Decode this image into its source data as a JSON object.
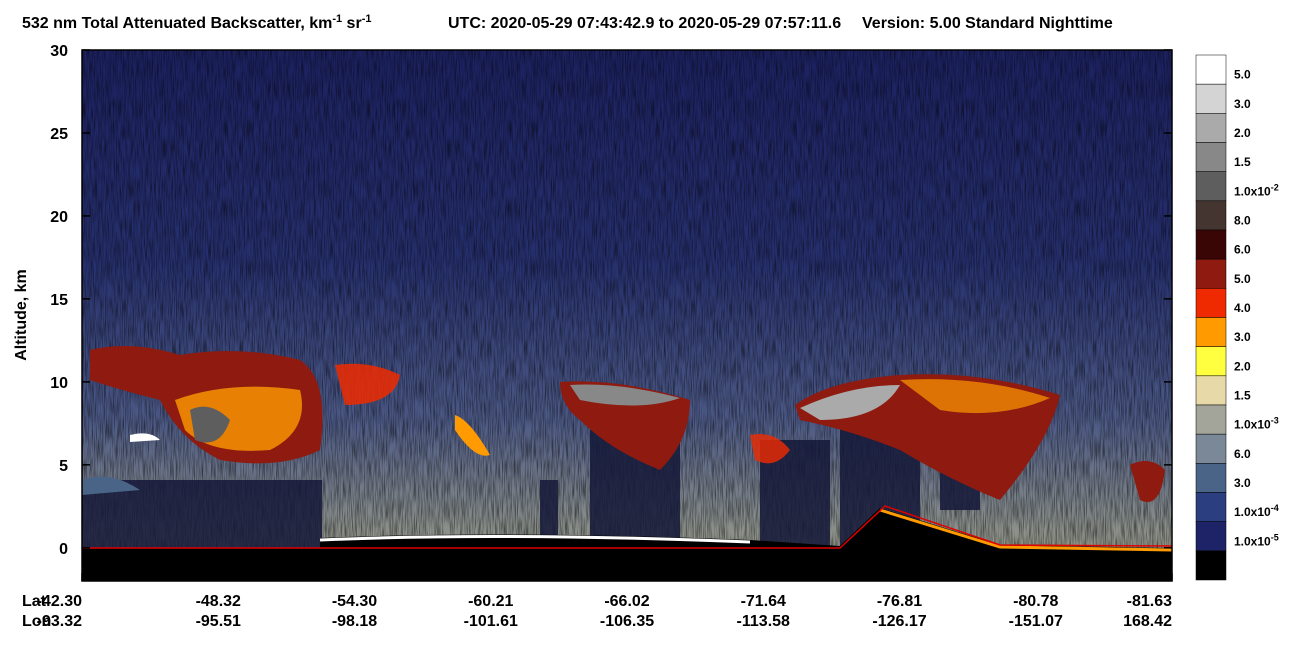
{
  "chart_data": {
    "type": "curtain",
    "title": [
      "532 nm Total Attenuated Backscatter, km",
      {
        "sup": "-1"
      },
      " sr",
      {
        "sup": "-1"
      }
    ],
    "utc": "UTC:  2020-05-29 07:43:42.9  to  2020-05-29 07:57:11.6",
    "version": "Version: 5.00  Standard  Nighttime",
    "y_label": "Altitude, km",
    "ylim": [
      -2,
      30
    ],
    "yticks": [
      0,
      5,
      10,
      15,
      20,
      25,
      30
    ],
    "lat_label": "Lat",
    "lon_label": "Lon",
    "lat": [
      "-42.30",
      "-48.32",
      "-54.30",
      "-60.21",
      "-66.02",
      "-71.64",
      "-76.81",
      "-80.78",
      "-81.63"
    ],
    "lon": [
      "-93.32",
      "-95.51",
      "-98.18",
      "-101.61",
      "-106.35",
      "-113.58",
      "-126.17",
      "-151.07",
      "168.42"
    ],
    "colorbar": [
      {
        "label": "5.0",
        "color": "#ffffff"
      },
      {
        "label": "3.0",
        "color": "#d4d4d4"
      },
      {
        "label": "2.0",
        "color": "#aaaaaa"
      },
      {
        "label": "1.5",
        "color": "#888888"
      },
      {
        "label": "1.0x10",
        "sup": "-2",
        "color": "#5e5e5e"
      },
      {
        "label": "8.0",
        "color": "#453530"
      },
      {
        "label": "6.0",
        "color": "#3a0505"
      },
      {
        "label": "5.0",
        "color": "#8e1a10"
      },
      {
        "label": "4.0",
        "color": "#f02a00"
      },
      {
        "label": "3.0",
        "color": "#ff9a00"
      },
      {
        "label": "2.0",
        "color": "#ffff40"
      },
      {
        "label": "1.5",
        "color": "#e8d9a8"
      },
      {
        "label": "1.0x10",
        "sup": "-3",
        "color": "#a3a59a"
      },
      {
        "label": "6.0",
        "color": "#7a8898"
      },
      {
        "label": "3.0",
        "color": "#4a6488"
      },
      {
        "label": "1.0x10",
        "sup": "-4",
        "color": "#2a3e80"
      },
      {
        "label": "1.0x10",
        "sup": "-5",
        "color": "#1e2266"
      },
      {
        "color": "#000000"
      }
    ]
  }
}
